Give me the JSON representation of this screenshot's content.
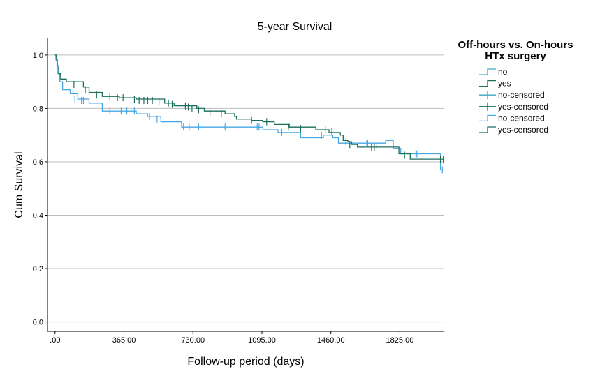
{
  "chart_data": {
    "type": "line",
    "title": "5-year Survival",
    "xlabel": "Follow-up period (days)",
    "ylabel": "Cum Survival",
    "xlim": [
      -40,
      2060
    ],
    "ylim": [
      -0.035,
      1.065
    ],
    "x_ticks": [
      0,
      365,
      730,
      1095,
      1460,
      1825
    ],
    "x_tick_labels": [
      ".00",
      "365.00",
      "730.00",
      "1095.00",
      "1460.00",
      "1825.00"
    ],
    "y_ticks": [
      0.0,
      0.2,
      0.4,
      0.6,
      0.8,
      1.0
    ],
    "y_tick_labels": [
      "0.0",
      "0.2",
      "0.4",
      "0.6",
      "0.8",
      "1.0"
    ],
    "grid": "horizontal",
    "legend": {
      "title_lines": [
        "Off-hours vs. On-hours",
        "HTx surgery"
      ],
      "placement": "right",
      "entries": [
        {
          "label": "no",
          "color": "#3aa6c2",
          "symbol": "step"
        },
        {
          "label": "yes",
          "color": "#1a6e5c",
          "symbol": "step"
        },
        {
          "label": "no-censored",
          "color": "#3aa6c2",
          "symbol": "cross"
        },
        {
          "label": "yes-censored",
          "color": "#1a6e5c",
          "symbol": "cross"
        },
        {
          "label": "no-censored",
          "color": "#47a6e6",
          "symbol": "step"
        },
        {
          "label": "yes-censored",
          "color": "#1a6e5c",
          "symbol": "step"
        }
      ]
    },
    "series": [
      {
        "name": "no",
        "color": "#47a6e6",
        "steps": [
          [
            0,
            1.0
          ],
          [
            5,
            0.98
          ],
          [
            10,
            0.955
          ],
          [
            15,
            0.93
          ],
          [
            25,
            0.9
          ],
          [
            40,
            0.87
          ],
          [
            80,
            0.855
          ],
          [
            120,
            0.835
          ],
          [
            180,
            0.82
          ],
          [
            250,
            0.79
          ],
          [
            430,
            0.78
          ],
          [
            490,
            0.77
          ],
          [
            560,
            0.75
          ],
          [
            670,
            0.73
          ],
          [
            1080,
            0.73
          ],
          [
            1100,
            0.72
          ],
          [
            1180,
            0.71
          ],
          [
            1300,
            0.69
          ],
          [
            1420,
            0.7
          ],
          [
            1470,
            0.69
          ],
          [
            1500,
            0.67
          ],
          [
            1550,
            0.67
          ],
          [
            1750,
            0.68
          ],
          [
            1790,
            0.65
          ],
          [
            1830,
            0.63
          ],
          [
            2040,
            0.57
          ],
          [
            2060,
            0.57
          ]
        ],
        "censored": [
          [
            95,
            0.855
          ],
          [
            105,
            0.835
          ],
          [
            140,
            0.83
          ],
          [
            150,
            0.83
          ],
          [
            290,
            0.79
          ],
          [
            350,
            0.79
          ],
          [
            380,
            0.79
          ],
          [
            420,
            0.79
          ],
          [
            500,
            0.77
          ],
          [
            540,
            0.76
          ],
          [
            680,
            0.73
          ],
          [
            710,
            0.73
          ],
          [
            760,
            0.73
          ],
          [
            900,
            0.73
          ],
          [
            1070,
            0.73
          ],
          [
            1080,
            0.73
          ],
          [
            1200,
            0.71
          ],
          [
            1410,
            0.7
          ],
          [
            1650,
            0.67
          ],
          [
            1655,
            0.67
          ],
          [
            1700,
            0.66
          ],
          [
            1910,
            0.63
          ],
          [
            1915,
            0.63
          ],
          [
            2050,
            0.57
          ]
        ]
      },
      {
        "name": "yes",
        "color": "#1a6e5c",
        "steps": [
          [
            0,
            1.0
          ],
          [
            5,
            0.985
          ],
          [
            12,
            0.96
          ],
          [
            20,
            0.93
          ],
          [
            30,
            0.91
          ],
          [
            60,
            0.9
          ],
          [
            150,
            0.88
          ],
          [
            180,
            0.86
          ],
          [
            250,
            0.845
          ],
          [
            340,
            0.84
          ],
          [
            430,
            0.835
          ],
          [
            580,
            0.82
          ],
          [
            630,
            0.81
          ],
          [
            750,
            0.8
          ],
          [
            790,
            0.79
          ],
          [
            900,
            0.78
          ],
          [
            950,
            0.77
          ],
          [
            960,
            0.76
          ],
          [
            1040,
            0.755
          ],
          [
            1100,
            0.75
          ],
          [
            1160,
            0.74
          ],
          [
            1240,
            0.73
          ],
          [
            1380,
            0.72
          ],
          [
            1450,
            0.71
          ],
          [
            1510,
            0.7
          ],
          [
            1525,
            0.68
          ],
          [
            1550,
            0.675
          ],
          [
            1570,
            0.665
          ],
          [
            1600,
            0.655
          ],
          [
            1820,
            0.63
          ],
          [
            1880,
            0.61
          ],
          [
            2060,
            0.61
          ]
        ],
        "censored": [
          [
            100,
            0.89
          ],
          [
            160,
            0.87
          ],
          [
            220,
            0.85
          ],
          [
            290,
            0.845
          ],
          [
            330,
            0.84
          ],
          [
            360,
            0.84
          ],
          [
            420,
            0.835
          ],
          [
            445,
            0.83
          ],
          [
            470,
            0.83
          ],
          [
            490,
            0.83
          ],
          [
            515,
            0.83
          ],
          [
            550,
            0.825
          ],
          [
            600,
            0.82
          ],
          [
            620,
            0.815
          ],
          [
            690,
            0.81
          ],
          [
            705,
            0.805
          ],
          [
            725,
            0.8
          ],
          [
            760,
            0.795
          ],
          [
            820,
            0.785
          ],
          [
            880,
            0.78
          ],
          [
            1040,
            0.755
          ],
          [
            1120,
            0.75
          ],
          [
            1235,
            0.73
          ],
          [
            1300,
            0.725
          ],
          [
            1430,
            0.72
          ],
          [
            1465,
            0.715
          ],
          [
            1540,
            0.675
          ],
          [
            1560,
            0.665
          ],
          [
            1675,
            0.655
          ],
          [
            1690,
            0.655
          ],
          [
            1850,
            0.625
          ],
          [
            2040,
            0.61
          ],
          [
            2055,
            0.61
          ]
        ]
      }
    ]
  }
}
